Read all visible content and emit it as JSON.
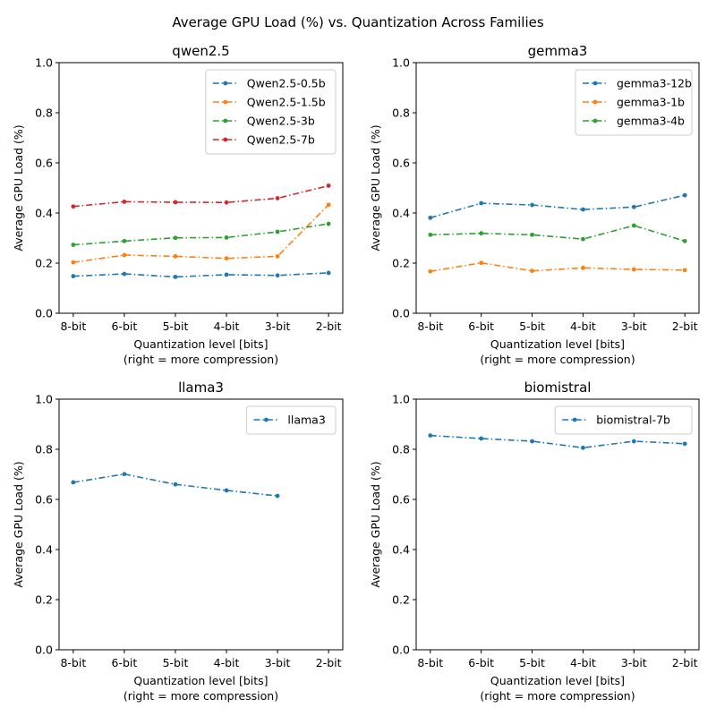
{
  "suptitle": "Average GPU Load (%) vs. Quantization Across Families",
  "chart_data": [
    {
      "type": "line",
      "title": "qwen2.5",
      "xlabel": "Quantization level [bits]",
      "xlabel_note": "(right = more compression)",
      "ylabel": "Average GPU Load (%)",
      "categories": [
        "8-bit",
        "6-bit",
        "5-bit",
        "4-bit",
        "3-bit",
        "2-bit"
      ],
      "ylim": [
        0,
        1
      ],
      "yticks": [
        "0.0",
        "0.2",
        "0.4",
        "0.6",
        "0.8",
        "1.0"
      ],
      "grid": false,
      "legend": "top-right",
      "series": [
        {
          "name": "Qwen2.5-0.5b",
          "color": "#1f77b4",
          "values": [
            0.148,
            0.157,
            0.145,
            0.154,
            0.151,
            0.161
          ]
        },
        {
          "name": "Qwen2.5-1.5b",
          "color": "#ff7f0e",
          "values": [
            0.203,
            0.232,
            0.227,
            0.219,
            0.227,
            0.433
          ]
        },
        {
          "name": "Qwen2.5-3b",
          "color": "#2ca02c",
          "values": [
            0.273,
            0.288,
            0.301,
            0.302,
            0.325,
            0.357
          ]
        },
        {
          "name": "Qwen2.5-7b",
          "color": "#d62728",
          "values": [
            0.426,
            0.445,
            0.443,
            0.442,
            0.459,
            0.509
          ]
        }
      ]
    },
    {
      "type": "line",
      "title": "gemma3",
      "xlabel": "Quantization level [bits]",
      "xlabel_note": "(right = more compression)",
      "ylabel": "Average GPU Load (%)",
      "categories": [
        "8-bit",
        "6-bit",
        "5-bit",
        "4-bit",
        "3-bit",
        "2-bit"
      ],
      "ylim": [
        0,
        1
      ],
      "yticks": [
        "0.0",
        "0.2",
        "0.4",
        "0.6",
        "0.8",
        "1.0"
      ],
      "grid": false,
      "legend": "top-right",
      "series": [
        {
          "name": "gemma3-12b",
          "color": "#1f77b4",
          "values": [
            0.381,
            0.439,
            0.432,
            0.414,
            0.424,
            0.471
          ]
        },
        {
          "name": "gemma3-1b",
          "color": "#ff7f0e",
          "values": [
            0.167,
            0.201,
            0.169,
            0.181,
            0.175,
            0.172
          ]
        },
        {
          "name": "gemma3-4b",
          "color": "#2ca02c",
          "values": [
            0.313,
            0.319,
            0.313,
            0.296,
            0.35,
            0.288
          ]
        }
      ]
    },
    {
      "type": "line",
      "title": "llama3",
      "xlabel": "Quantization level [bits]",
      "xlabel_note": "(right = more compression)",
      "ylabel": "Average GPU Load (%)",
      "categories": [
        "8-bit",
        "6-bit",
        "5-bit",
        "4-bit",
        "3-bit",
        "2-bit"
      ],
      "ylim": [
        0,
        1
      ],
      "yticks": [
        "0.0",
        "0.2",
        "0.4",
        "0.6",
        "0.8",
        "1.0"
      ],
      "grid": false,
      "legend": "top-right",
      "series": [
        {
          "name": "llama3",
          "color": "#1f77b4",
          "values": [
            0.668,
            0.701,
            0.66,
            0.636,
            0.614,
            null
          ]
        }
      ]
    },
    {
      "type": "line",
      "title": "biomistral",
      "xlabel": "Quantization level [bits]",
      "xlabel_note": "(right = more compression)",
      "ylabel": "Average GPU Load (%)",
      "categories": [
        "8-bit",
        "6-bit",
        "5-bit",
        "4-bit",
        "3-bit",
        "2-bit"
      ],
      "ylim": [
        0,
        1
      ],
      "yticks": [
        "0.0",
        "0.2",
        "0.4",
        "0.6",
        "0.8",
        "1.0"
      ],
      "grid": false,
      "legend": "top-right",
      "series": [
        {
          "name": "biomistral-7b",
          "color": "#1f77b4",
          "values": [
            0.855,
            0.843,
            0.832,
            0.806,
            0.832,
            0.822
          ]
        }
      ]
    }
  ]
}
